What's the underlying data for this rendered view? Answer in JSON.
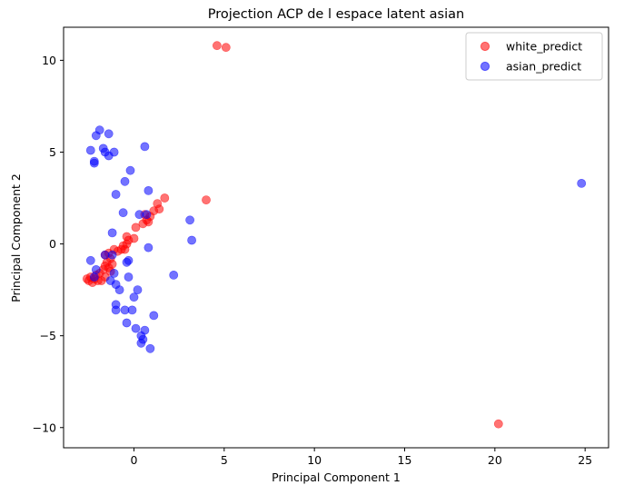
{
  "chart_data": {
    "type": "scatter",
    "title": "Projection ACP de l espace latent asian",
    "xlabel": "Principal Component 1",
    "ylabel": "Principal Component 2",
    "xlim": [
      -3.9,
      26.3
    ],
    "ylim": [
      -11.1,
      11.8
    ],
    "xticks": [
      0,
      5,
      10,
      15,
      20,
      25
    ],
    "yticks": [
      -10,
      -5,
      0,
      5,
      10
    ],
    "grid": false,
    "legend_position": "top-right",
    "series": [
      {
        "name": "white_predict",
        "color": "#ff0000",
        "points": [
          [
            4.6,
            10.8
          ],
          [
            5.1,
            10.7
          ],
          [
            20.2,
            -9.8
          ],
          [
            4.0,
            2.4
          ],
          [
            1.7,
            2.5
          ],
          [
            1.3,
            2.2
          ],
          [
            1.4,
            1.9
          ],
          [
            1.1,
            1.8
          ],
          [
            0.9,
            1.5
          ],
          [
            0.6,
            1.6
          ],
          [
            0.7,
            1.3
          ],
          [
            0.8,
            1.2
          ],
          [
            0.5,
            1.1
          ],
          [
            0.1,
            0.9
          ],
          [
            0.0,
            0.3
          ],
          [
            -0.4,
            0.4
          ],
          [
            -0.3,
            0.2
          ],
          [
            -0.4,
            0.0
          ],
          [
            -0.6,
            -0.1
          ],
          [
            -0.5,
            -0.3
          ],
          [
            -0.7,
            -0.3
          ],
          [
            -0.9,
            -0.4
          ],
          [
            -1.1,
            -0.3
          ],
          [
            -1.4,
            -0.5
          ],
          [
            -1.6,
            -0.6
          ],
          [
            -1.3,
            -0.8
          ],
          [
            -1.5,
            -1.0
          ],
          [
            -1.2,
            -1.1
          ],
          [
            -1.6,
            -1.2
          ],
          [
            -1.4,
            -1.3
          ],
          [
            -1.7,
            -1.4
          ],
          [
            -1.3,
            -1.5
          ],
          [
            -1.9,
            -1.6
          ],
          [
            -2.1,
            -1.7
          ],
          [
            -1.6,
            -1.8
          ],
          [
            -2.4,
            -1.8
          ],
          [
            -2.2,
            -1.9
          ],
          [
            -2.5,
            -2.0
          ],
          [
            -2.0,
            -2.0
          ],
          [
            -2.6,
            -1.9
          ],
          [
            -2.3,
            -2.1
          ],
          [
            -1.8,
            -2.0
          ]
        ]
      },
      {
        "name": "asian_predict",
        "color": "#0000ff",
        "points": [
          [
            24.8,
            3.3
          ],
          [
            -1.9,
            6.2
          ],
          [
            -2.1,
            5.9
          ],
          [
            -1.4,
            6.0
          ],
          [
            -2.4,
            5.1
          ],
          [
            -1.7,
            5.2
          ],
          [
            -1.6,
            5.0
          ],
          [
            -1.1,
            5.0
          ],
          [
            -1.4,
            4.8
          ],
          [
            -2.2,
            4.5
          ],
          [
            -2.2,
            4.4
          ],
          [
            0.6,
            5.3
          ],
          [
            -0.2,
            4.0
          ],
          [
            -0.5,
            3.4
          ],
          [
            -1.0,
            2.7
          ],
          [
            0.8,
            2.9
          ],
          [
            -0.6,
            1.7
          ],
          [
            0.3,
            1.6
          ],
          [
            0.7,
            1.6
          ],
          [
            3.1,
            1.3
          ],
          [
            -1.2,
            0.6
          ],
          [
            3.2,
            0.2
          ],
          [
            0.8,
            -0.2
          ],
          [
            -2.4,
            -0.9
          ],
          [
            -1.6,
            -0.6
          ],
          [
            -1.2,
            -0.6
          ],
          [
            -0.3,
            -0.9
          ],
          [
            -0.4,
            -1.0
          ],
          [
            2.2,
            -1.7
          ],
          [
            -2.1,
            -1.4
          ],
          [
            -2.2,
            -1.8
          ],
          [
            -1.1,
            -1.6
          ],
          [
            -0.3,
            -1.8
          ],
          [
            -1.3,
            -2.0
          ],
          [
            -1.0,
            -2.2
          ],
          [
            -0.8,
            -2.5
          ],
          [
            0.2,
            -2.5
          ],
          [
            0.0,
            -2.9
          ],
          [
            -1.0,
            -3.3
          ],
          [
            -1.0,
            -3.6
          ],
          [
            -0.5,
            -3.6
          ],
          [
            -0.1,
            -3.6
          ],
          [
            1.1,
            -3.9
          ],
          [
            -0.4,
            -4.3
          ],
          [
            0.1,
            -4.6
          ],
          [
            0.6,
            -4.7
          ],
          [
            0.4,
            -5.0
          ],
          [
            0.5,
            -5.2
          ],
          [
            0.4,
            -5.4
          ],
          [
            0.9,
            -5.7
          ]
        ]
      }
    ]
  }
}
